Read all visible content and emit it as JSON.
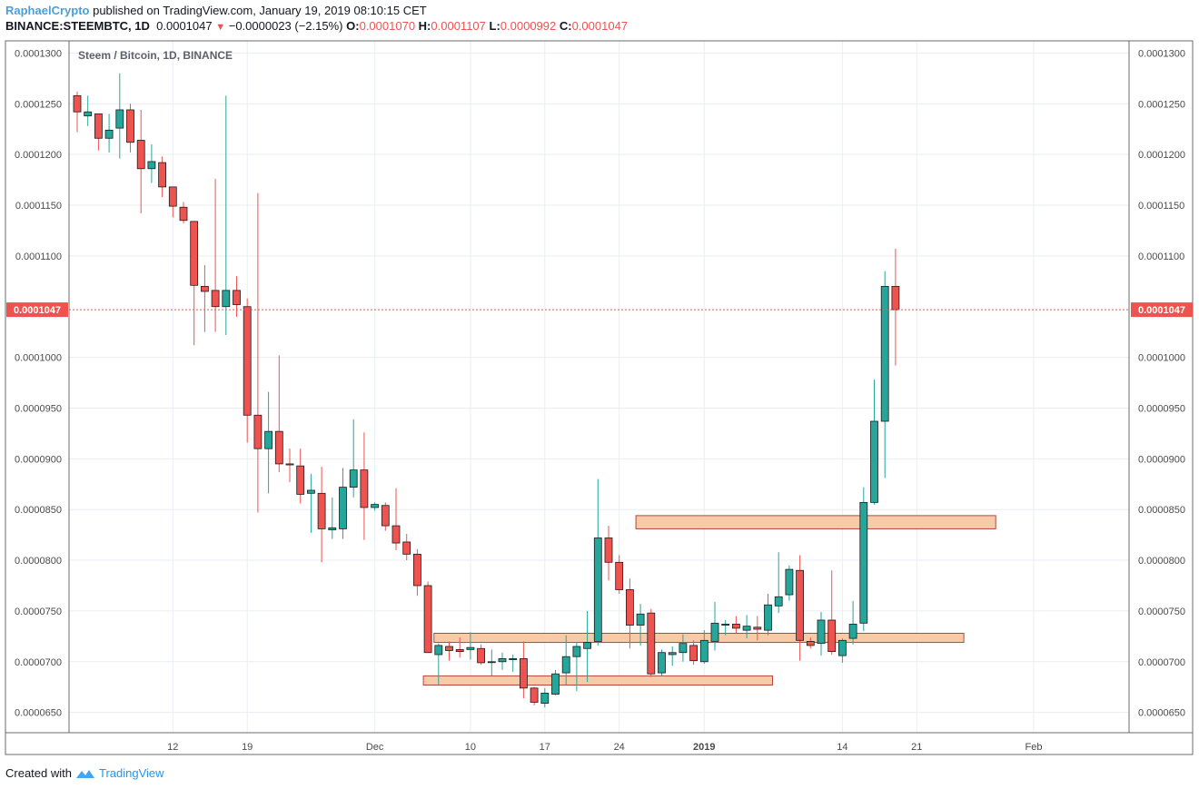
{
  "header": {
    "author": "RaphaelCrypto",
    "published_text": "published on TradingView.com, January 19, 2019 08:10:15 CET",
    "symbol": "BINANCE:STEEMBTC, 1D",
    "last": "0.0001047",
    "change": "−0.0000023 (−2.15%)",
    "o_label": "O:",
    "o_value": "0.0001070",
    "h_label": "H:",
    "h_value": "0.0001107",
    "l_label": "L:",
    "l_value": "0.0000992",
    "c_label": "C:",
    "c_value": "0.0001047"
  },
  "footer": {
    "created_with": "Created with",
    "brand": "TradingView"
  },
  "colors": {
    "up": "#26a69a",
    "down": "#ef5350",
    "grid": "#e9eef3",
    "zone_fill": "#f8cba8",
    "zone_border": "#b5463a",
    "price_line": "#ef5350"
  },
  "chart_data": {
    "type": "candlestick",
    "title": "Steem / Bitcoin, 1D, BINANCE",
    "ylim": [
      6.3e-05,
      0.0001312
    ],
    "y_ticks": [
      {
        "value": 0.00013,
        "label": "0.0001300"
      },
      {
        "value": 0.000125,
        "label": "0.0001250"
      },
      {
        "value": 0.00012,
        "label": "0.0001200"
      },
      {
        "value": 0.000115,
        "label": "0.0001150"
      },
      {
        "value": 0.00011,
        "label": "0.0001100"
      },
      {
        "value": 0.0001,
        "label": "0.0001000"
      },
      {
        "value": 9.5e-05,
        "label": "0.0000950"
      },
      {
        "value": 9e-05,
        "label": "0.0000900"
      },
      {
        "value": 8.5e-05,
        "label": "0.0000850"
      },
      {
        "value": 8e-05,
        "label": "0.0000800"
      },
      {
        "value": 7.5e-05,
        "label": "0.0000750"
      },
      {
        "value": 7e-05,
        "label": "0.0000700"
      },
      {
        "value": 6.5e-05,
        "label": "0.0000650"
      }
    ],
    "x_ticks": [
      {
        "index": 9,
        "label": "12"
      },
      {
        "index": 16,
        "label": "19"
      },
      {
        "index": 28,
        "label": "Dec"
      },
      {
        "index": 37,
        "label": "10"
      },
      {
        "index": 44,
        "label": "17"
      },
      {
        "index": 51,
        "label": "24"
      },
      {
        "index": 59,
        "label": "2019",
        "bold": true
      },
      {
        "index": 72,
        "label": "14"
      },
      {
        "index": 79,
        "label": "21"
      },
      {
        "index": 90,
        "label": "Feb"
      }
    ],
    "current_price": {
      "value": 0.0001047,
      "label": "0.0001047"
    },
    "candles": [
      {
        "date": "2018-11-03",
        "o": 0.0001258,
        "h": 0.0001262,
        "l": 0.0001222,
        "c": 0.0001242
      },
      {
        "date": "2018-11-04",
        "o": 0.0001238,
        "h": 0.0001258,
        "l": 0.0001228,
        "c": 0.0001242
      },
      {
        "date": "2018-11-05",
        "o": 0.000124,
        "h": 0.000124,
        "l": 0.0001204,
        "c": 0.0001216
      },
      {
        "date": "2018-11-06",
        "o": 0.0001216,
        "h": 0.000124,
        "l": 0.0001202,
        "c": 0.0001224
      },
      {
        "date": "2018-11-07",
        "o": 0.0001226,
        "h": 0.000128,
        "l": 0.0001196,
        "c": 0.0001244
      },
      {
        "date": "2018-11-08",
        "o": 0.0001244,
        "h": 0.000125,
        "l": 0.0001202,
        "c": 0.0001212
      },
      {
        "date": "2018-11-09",
        "o": 0.0001214,
        "h": 0.0001244,
        "l": 0.0001142,
        "c": 0.0001186
      },
      {
        "date": "2018-11-10",
        "o": 0.0001186,
        "h": 0.000121,
        "l": 0.0001172,
        "c": 0.0001193
      },
      {
        "date": "2018-11-11",
        "o": 0.0001192,
        "h": 0.0001198,
        "l": 0.0001158,
        "c": 0.0001168
      },
      {
        "date": "2018-11-12",
        "o": 0.0001168,
        "h": 0.0001168,
        "l": 0.0001138,
        "c": 0.0001149
      },
      {
        "date": "2018-11-13",
        "o": 0.0001148,
        "h": 0.0001153,
        "l": 0.0001132,
        "c": 0.0001135
      },
      {
        "date": "2018-11-14",
        "o": 0.0001134,
        "h": 0.0001134,
        "l": 0.0001012,
        "c": 0.0001071
      },
      {
        "date": "2018-11-15",
        "o": 0.000107,
        "h": 0.0001091,
        "l": 0.0001025,
        "c": 0.0001065
      },
      {
        "date": "2018-11-16",
        "o": 0.0001066,
        "h": 0.0001176,
        "l": 0.0001025,
        "c": 0.000105
      },
      {
        "date": "2018-11-17",
        "o": 0.000105,
        "h": 0.0001258,
        "l": 0.0001022,
        "c": 0.0001066
      },
      {
        "date": "2018-11-18",
        "o": 0.0001066,
        "h": 0.000108,
        "l": 0.000104,
        "c": 0.0001052
      },
      {
        "date": "2018-11-19",
        "o": 0.000105,
        "h": 0.0001058,
        "l": 9.16e-05,
        "c": 9.43e-05
      },
      {
        "date": "2018-11-20",
        "o": 9.43e-05,
        "h": 0.0001162,
        "l": 8.47e-05,
        "c": 9.1e-05
      },
      {
        "date": "2018-11-21",
        "o": 9.1e-05,
        "h": 9.66e-05,
        "l": 8.66e-05,
        "c": 9.27e-05
      },
      {
        "date": "2018-11-22",
        "o": 9.27e-05,
        "h": 0.0001002,
        "l": 8.87e-05,
        "c": 8.95e-05
      },
      {
        "date": "2018-11-23",
        "o": 8.95e-05,
        "h": 9.1e-05,
        "l": 8.77e-05,
        "c": 8.94e-05
      },
      {
        "date": "2018-11-24",
        "o": 8.93e-05,
        "h": 9.1e-05,
        "l": 8.56e-05,
        "c": 8.65e-05
      },
      {
        "date": "2018-11-25",
        "o": 8.66e-05,
        "h": 8.85e-05,
        "l": 8.27e-05,
        "c": 8.69e-05
      },
      {
        "date": "2018-11-26",
        "o": 8.66e-05,
        "h": 8.92e-05,
        "l": 7.98e-05,
        "c": 8.31e-05
      },
      {
        "date": "2018-11-27",
        "o": 8.3e-05,
        "h": 8.62e-05,
        "l": 8.21e-05,
        "c": 8.32e-05
      },
      {
        "date": "2018-11-28",
        "o": 8.31e-05,
        "h": 8.91e-05,
        "l": 8.21e-05,
        "c": 8.72e-05
      },
      {
        "date": "2018-11-29",
        "o": 8.72e-05,
        "h": 9.39e-05,
        "l": 8.62e-05,
        "c": 8.89e-05
      },
      {
        "date": "2018-11-30",
        "o": 8.89e-05,
        "h": 9.26e-05,
        "l": 8.2e-05,
        "c": 8.52e-05
      },
      {
        "date": "2018-12-01",
        "o": 8.52e-05,
        "h": 8.57e-05,
        "l": 8.49e-05,
        "c": 8.55e-05
      },
      {
        "date": "2018-12-02",
        "o": 8.54e-05,
        "h": 8.57e-05,
        "l": 8.29e-05,
        "c": 8.34e-05
      },
      {
        "date": "2018-12-03",
        "o": 8.34e-05,
        "h": 8.71e-05,
        "l": 8.1e-05,
        "c": 8.17e-05
      },
      {
        "date": "2018-12-04",
        "o": 8.18e-05,
        "h": 8.26e-05,
        "l": 8e-05,
        "c": 8.06e-05
      },
      {
        "date": "2018-12-05",
        "o": 8.06e-05,
        "h": 8.11e-05,
        "l": 7.65e-05,
        "c": 7.75e-05
      },
      {
        "date": "2018-12-06",
        "o": 7.75e-05,
        "h": 7.79e-05,
        "l": 7.11e-05,
        "c": 7.09e-05
      },
      {
        "date": "2018-12-07",
        "o": 7.07e-05,
        "h": 7.18e-05,
        "l": 6.77e-05,
        "c": 7.16e-05
      },
      {
        "date": "2018-12-08",
        "o": 7.15e-05,
        "h": 7.2e-05,
        "l": 7.01e-05,
        "c": 7.11e-05
      },
      {
        "date": "2018-12-09",
        "o": 7.12e-05,
        "h": 7.24e-05,
        "l": 7.04e-05,
        "c": 7.1e-05
      },
      {
        "date": "2018-12-10",
        "o": 7.12e-05,
        "h": 7.29e-05,
        "l": 7.02e-05,
        "c": 7.14e-05
      },
      {
        "date": "2018-12-11",
        "o": 7.13e-05,
        "h": 7.17e-05,
        "l": 6.97e-05,
        "c": 6.99e-05
      },
      {
        "date": "2018-12-12",
        "o": 7e-05,
        "h": 7.12e-05,
        "l": 6.86e-05,
        "c": 7e-05
      },
      {
        "date": "2018-12-13",
        "o": 7e-05,
        "h": 7.09e-05,
        "l": 6.92e-05,
        "c": 7.03e-05
      },
      {
        "date": "2018-12-14",
        "o": 7.02e-05,
        "h": 7.07e-05,
        "l": 6.9e-05,
        "c": 7.03e-05
      },
      {
        "date": "2018-12-15",
        "o": 7.03e-05,
        "h": 7.2e-05,
        "l": 6.64e-05,
        "c": 6.74e-05
      },
      {
        "date": "2018-12-16",
        "o": 6.74e-05,
        "h": 6.75e-05,
        "l": 6.57e-05,
        "c": 6.6e-05
      },
      {
        "date": "2018-12-17",
        "o": 6.59e-05,
        "h": 6.74e-05,
        "l": 6.55e-05,
        "c": 6.69e-05
      },
      {
        "date": "2018-12-18",
        "o": 6.68e-05,
        "h": 6.92e-05,
        "l": 6.67e-05,
        "c": 6.88e-05
      },
      {
        "date": "2018-12-19",
        "o": 6.89e-05,
        "h": 7.26e-05,
        "l": 6.77e-05,
        "c": 7.05e-05
      },
      {
        "date": "2018-12-20",
        "o": 7.05e-05,
        "h": 7.19e-05,
        "l": 6.71e-05,
        "c": 7.15e-05
      },
      {
        "date": "2018-12-21",
        "o": 7.13e-05,
        "h": 7.5e-05,
        "l": 6.8e-05,
        "c": 7.19e-05
      },
      {
        "date": "2018-12-22",
        "o": 7.2e-05,
        "h": 8.8e-05,
        "l": 7.16e-05,
        "c": 8.22e-05
      },
      {
        "date": "2018-12-23",
        "o": 8.22e-05,
        "h": 8.34e-05,
        "l": 7.8e-05,
        "c": 7.98e-05
      },
      {
        "date": "2018-12-24",
        "o": 7.98e-05,
        "h": 8.05e-05,
        "l": 7.67e-05,
        "c": 7.71e-05
      },
      {
        "date": "2018-12-25",
        "o": 7.71e-05,
        "h": 7.82e-05,
        "l": 7.13e-05,
        "c": 7.36e-05
      },
      {
        "date": "2018-12-26",
        "o": 7.36e-05,
        "h": 7.57e-05,
        "l": 7.16e-05,
        "c": 7.47e-05
      },
      {
        "date": "2018-12-27",
        "o": 7.48e-05,
        "h": 7.52e-05,
        "l": 6.85e-05,
        "c": 6.88e-05
      },
      {
        "date": "2018-12-28",
        "o": 6.89e-05,
        "h": 7.12e-05,
        "l": 6.86e-05,
        "c": 7.09e-05
      },
      {
        "date": "2018-12-29",
        "o": 7.07e-05,
        "h": 7.15e-05,
        "l": 6.96e-05,
        "c": 7.09e-05
      },
      {
        "date": "2018-12-30",
        "o": 7.09e-05,
        "h": 7.27e-05,
        "l": 7e-05,
        "c": 7.18e-05
      },
      {
        "date": "2018-12-31",
        "o": 7.16e-05,
        "h": 7.21e-05,
        "l": 6.97e-05,
        "c": 7.01e-05
      },
      {
        "date": "2019-01-01",
        "o": 7e-05,
        "h": 7.31e-05,
        "l": 6.98e-05,
        "c": 7.21e-05
      },
      {
        "date": "2019-01-02",
        "o": 7.2e-05,
        "h": 7.59e-05,
        "l": 7.11e-05,
        "c": 7.38e-05
      },
      {
        "date": "2019-01-03",
        "o": 7.36e-05,
        "h": 7.41e-05,
        "l": 7.26e-05,
        "c": 7.37e-05
      },
      {
        "date": "2019-01-04",
        "o": 7.37e-05,
        "h": 7.45e-05,
        "l": 7.28e-05,
        "c": 7.33e-05
      },
      {
        "date": "2019-01-05",
        "o": 7.31e-05,
        "h": 7.46e-05,
        "l": 7.23e-05,
        "c": 7.35e-05
      },
      {
        "date": "2019-01-06",
        "o": 7.34e-05,
        "h": 7.45e-05,
        "l": 7.21e-05,
        "c": 7.32e-05
      },
      {
        "date": "2019-01-07",
        "o": 7.31e-05,
        "h": 7.67e-05,
        "l": 7.26e-05,
        "c": 7.56e-05
      },
      {
        "date": "2019-01-08",
        "o": 7.55e-05,
        "h": 8.08e-05,
        "l": 7.48e-05,
        "c": 7.64e-05
      },
      {
        "date": "2019-01-09",
        "o": 7.66e-05,
        "h": 7.95e-05,
        "l": 7.6e-05,
        "c": 7.91e-05
      },
      {
        "date": "2019-01-10",
        "o": 7.9e-05,
        "h": 8.05e-05,
        "l": 7.01e-05,
        "c": 7.21e-05
      },
      {
        "date": "2019-01-11",
        "o": 7.2e-05,
        "h": 7.24e-05,
        "l": 7.13e-05,
        "c": 7.16e-05
      },
      {
        "date": "2019-01-12",
        "o": 7.18e-05,
        "h": 7.49e-05,
        "l": 7.06e-05,
        "c": 7.41e-05
      },
      {
        "date": "2019-01-13",
        "o": 7.41e-05,
        "h": 7.9e-05,
        "l": 7.07e-05,
        "c": 7.1e-05
      },
      {
        "date": "2019-01-14",
        "o": 7.06e-05,
        "h": 7.23e-05,
        "l": 6.99e-05,
        "c": 7.21e-05
      },
      {
        "date": "2019-01-15",
        "o": 7.23e-05,
        "h": 7.6e-05,
        "l": 7.17e-05,
        "c": 7.37e-05
      },
      {
        "date": "2019-01-16",
        "o": 7.38e-05,
        "h": 8.72e-05,
        "l": 7.3e-05,
        "c": 8.57e-05
      },
      {
        "date": "2019-01-17",
        "o": 8.57e-05,
        "h": 9.78e-05,
        "l": 8.55e-05,
        "c": 9.37e-05
      },
      {
        "date": "2019-01-18",
        "o": 9.37e-05,
        "h": 0.0001085,
        "l": 8.81e-05,
        "c": 0.000107
      },
      {
        "date": "2019-01-19",
        "o": 0.000107,
        "h": 0.0001107,
        "l": 9.92e-05,
        "c": 0.0001047
      }
    ],
    "zones": [
      {
        "from_index": 53,
        "to_index": 86,
        "low": 8.31e-05,
        "high": 8.44e-05
      },
      {
        "from_index": 34,
        "to_index": 83,
        "low": 7.19e-05,
        "high": 7.28e-05
      },
      {
        "from_index": 33,
        "to_index": 65,
        "low": 6.77e-05,
        "high": 6.86e-05
      }
    ]
  }
}
